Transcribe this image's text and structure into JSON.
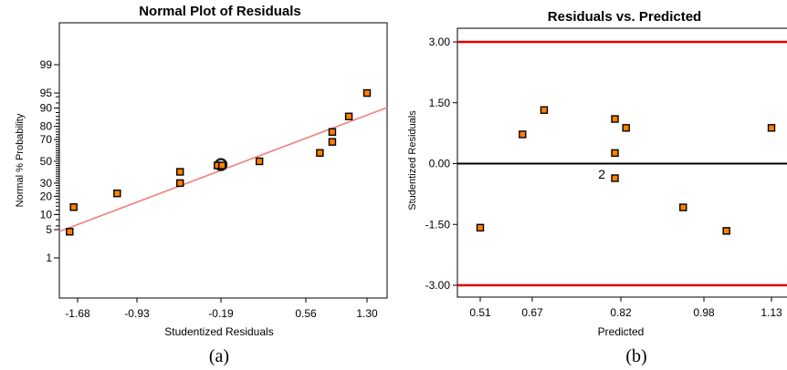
{
  "chart_data": [
    {
      "type": "scatter",
      "title": "Normal Plot of Residuals",
      "xlabel": "Studentized Residuals",
      "ylabel": "Normal % Probability",
      "x_ticks": [
        "-1.68",
        "-0.93",
        "-0.19",
        "0.56",
        "1.30"
      ],
      "y_ticks": [
        "1",
        "5",
        "10",
        "20",
        "30",
        "50",
        "70",
        "80",
        "90",
        "95",
        "99"
      ],
      "xlim": [
        -1.68,
        1.3
      ],
      "grid": false,
      "caption": "(a)",
      "points": [
        {
          "x": -1.78,
          "y": 4.5
        },
        {
          "x": -1.73,
          "y": 13.5
        },
        {
          "x": -1.18,
          "y": 22
        },
        {
          "x": -0.55,
          "y": 30
        },
        {
          "x": -0.55,
          "y": 40
        },
        {
          "x": -0.22,
          "y": 46
        },
        {
          "x": -0.18,
          "y": 46
        },
        {
          "x": 0.15,
          "y": 50
        },
        {
          "x": 0.73,
          "y": 58
        },
        {
          "x": 0.88,
          "y": 68
        },
        {
          "x": 0.88,
          "y": 76
        },
        {
          "x": 1.08,
          "y": 86
        },
        {
          "x": 1.3,
          "y": 95
        }
      ],
      "highlight_point": {
        "x": -0.19,
        "y": 46
      },
      "fit_line_color": "#f08080",
      "point_color": "#ff8000"
    },
    {
      "type": "scatter",
      "title": "Residuals vs. Predicted",
      "xlabel": "Predicted",
      "ylabel": "Studentized Residuals",
      "x_ticks": [
        "0.51",
        "0.67",
        "0.82",
        "0.98",
        "1.13"
      ],
      "y_ticks": [
        "-3.00",
        "-1.50",
        "0.00",
        "1.50",
        "3.00"
      ],
      "xlim": [
        0.51,
        1.13
      ],
      "ylim": [
        -3.0,
        3.0
      ],
      "grid": false,
      "caption": "(b)",
      "points": [
        {
          "x": 0.51,
          "y": -1.58
        },
        {
          "x": 0.64,
          "y": 0.72
        },
        {
          "x": 0.69,
          "y": 1.32
        },
        {
          "x": 0.81,
          "y": 1.1
        },
        {
          "x": 0.83,
          "y": 0.88
        },
        {
          "x": 0.81,
          "y": 0.26
        },
        {
          "x": 0.81,
          "y": -0.36
        },
        {
          "x": 0.94,
          "y": -1.08
        },
        {
          "x": 1.03,
          "y": -1.66
        },
        {
          "x": 1.13,
          "y": 0.88
        }
      ],
      "annotations": [
        {
          "text": "2",
          "x": 0.8,
          "y": -0.26
        }
      ],
      "reference_lines": [
        3.0,
        -3.0
      ],
      "reference_line_color": "#e00000",
      "point_color": "#ff8000"
    }
  ]
}
